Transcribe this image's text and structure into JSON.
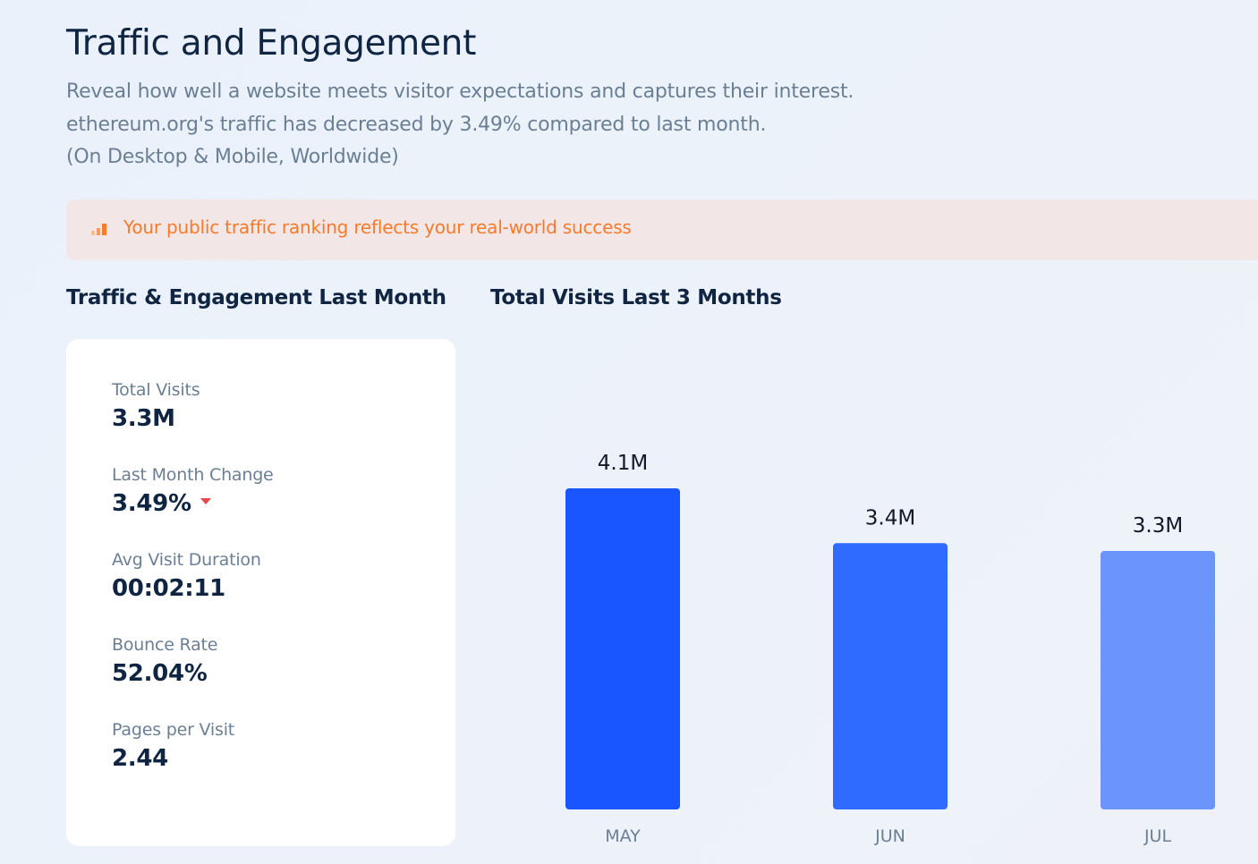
{
  "header": {
    "title": "Traffic and Engagement",
    "subtitle_line1": "Reveal how well a website meets visitor expectations and captures their interest.",
    "subtitle_line2": "ethereum.org's traffic has decreased by 3.49% compared to last month.",
    "subtitle_line3": "(On Desktop & Mobile, Worldwide)"
  },
  "banner": {
    "icon": "bar-rank-icon",
    "text": "Your public traffic ranking reflects your real-world success",
    "color": "#f97a2a"
  },
  "metrics": {
    "section_title": "Traffic & Engagement Last Month",
    "items": [
      {
        "label": "Total Visits",
        "value": "3.3M"
      },
      {
        "label": "Last Month Change",
        "value": "3.49%",
        "trend": "down",
        "trend_color": "#e5484d"
      },
      {
        "label": "Avg Visit Duration",
        "value": "00:02:11"
      },
      {
        "label": "Bounce Rate",
        "value": "52.04%"
      },
      {
        "label": "Pages per Visit",
        "value": "2.44"
      }
    ]
  },
  "visits_chart": {
    "section_title": "Total Visits Last 3 Months"
  },
  "chart_data": {
    "type": "bar",
    "title": "Total Visits Last 3 Months",
    "categories": [
      "MAY",
      "JUN",
      "JUL"
    ],
    "values": [
      4.1,
      3.4,
      3.3
    ],
    "value_labels": [
      "4.1M",
      "3.4M",
      "3.3M"
    ],
    "unit": "M",
    "bar_colors": [
      "#1a56ff",
      "#2f6bff",
      "#6b95fb"
    ],
    "ylim": [
      0,
      4.1
    ],
    "grid": false,
    "legend": "none"
  }
}
